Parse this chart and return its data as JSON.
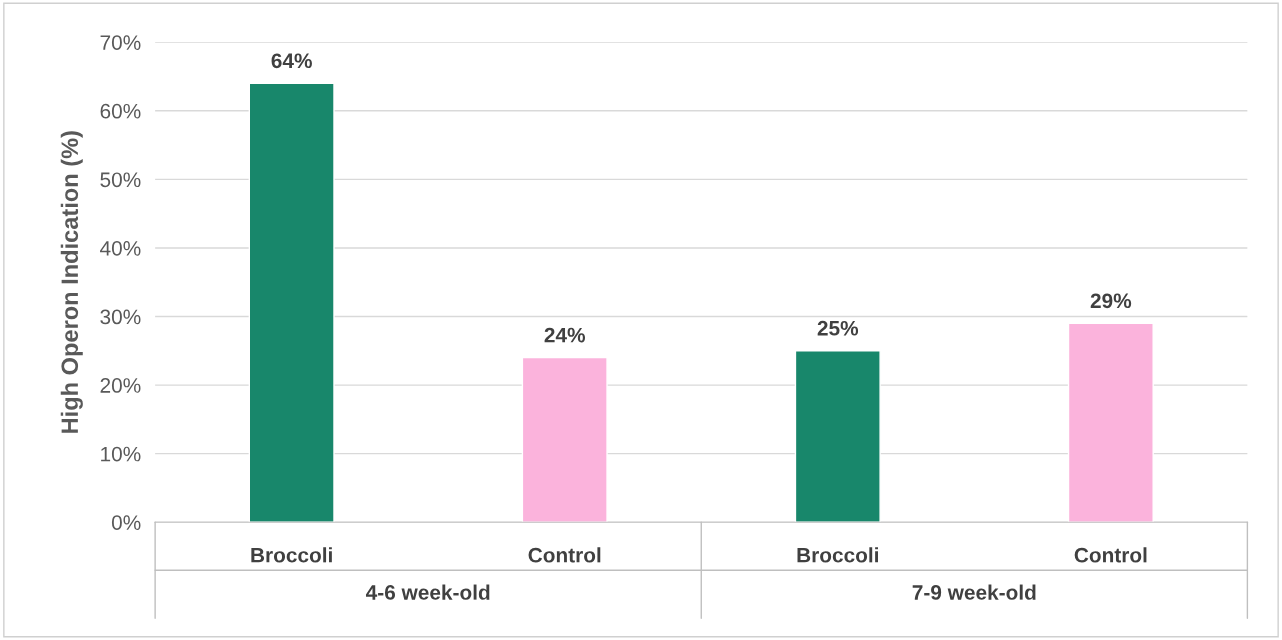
{
  "chart_data": {
    "type": "bar",
    "ylabel": "High Operon Indication (%)",
    "categories": [
      "Broccoli",
      "Control",
      "Broccoli",
      "Control"
    ],
    "values": [
      64,
      24,
      25,
      29
    ],
    "colors": [
      "#18876b",
      "#fbb3dc",
      "#18876b",
      "#fbb3dc"
    ],
    "value_labels": [
      "64%",
      "24%",
      "25%",
      "29%"
    ],
    "ylim": [
      0,
      70
    ],
    "yticks": [
      {
        "value": 0,
        "label": "0%"
      },
      {
        "value": 10,
        "label": "10%"
      },
      {
        "value": 20,
        "label": "20%"
      },
      {
        "value": 30,
        "label": "30%"
      },
      {
        "value": 40,
        "label": "40%"
      },
      {
        "value": 50,
        "label": "50%"
      },
      {
        "value": 60,
        "label": "60%"
      },
      {
        "value": 70,
        "label": "70%"
      }
    ],
    "grid": "y",
    "annotations": [
      "4-6 week-old",
      "7-9 week-old"
    ]
  }
}
